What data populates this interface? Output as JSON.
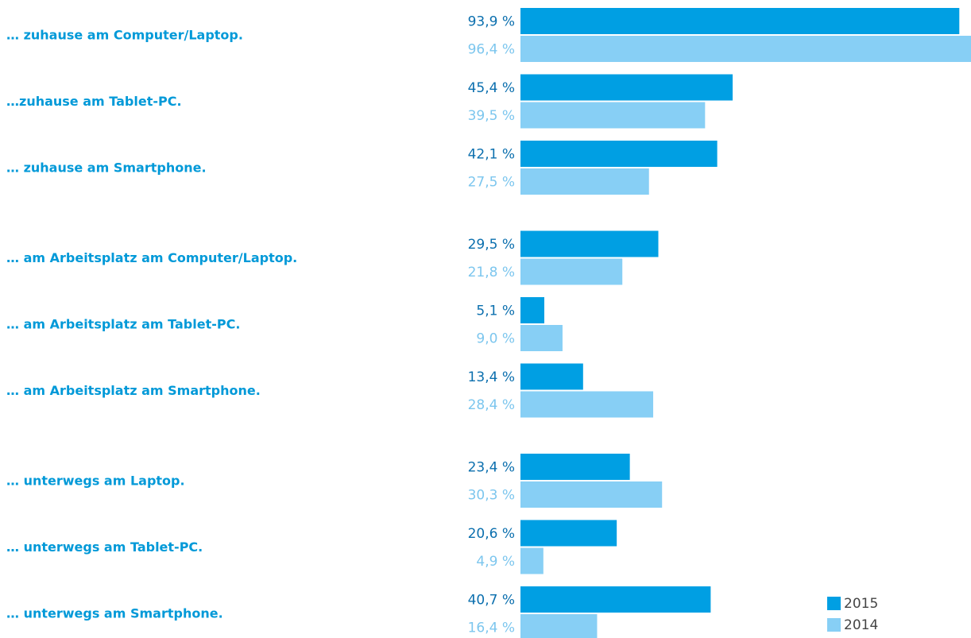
{
  "chart_data": {
    "type": "barh",
    "categories": [
      "… zuhause am Computer/Laptop.",
      "…zuhause am Tablet-PC.",
      "… zuhause am Smartphone.",
      "… am Arbeitsplatz am Computer/Laptop.",
      "… am Arbeitsplatz am Tablet-PC.",
      "… am Arbeitsplatz am Smartphone.",
      "… unterwegs am Laptop.",
      "… unterwegs am Tablet-PC.",
      "… unterwegs am Smartphone."
    ],
    "series": [
      {
        "name": "2015",
        "color": "#009fe3",
        "label_color": "#0b6fae",
        "values": [
          93.9,
          45.4,
          42.1,
          29.5,
          5.1,
          13.4,
          23.4,
          20.6,
          40.7
        ],
        "value_labels": [
          "93,9 %",
          "45,4 %",
          "42,1 %",
          "29,5 %",
          "5,1 %",
          "13,4 %",
          "23,4 %",
          "20,6 %",
          "40,7 %"
        ]
      },
      {
        "name": "2014",
        "color": "#87cff5",
        "label_color": "#7cc6ee",
        "values": [
          96.4,
          39.5,
          27.5,
          21.8,
          9.0,
          28.4,
          30.3,
          4.9,
          16.4
        ],
        "value_labels": [
          "96,4 %",
          "39,5 %",
          "27,5 %",
          "21,8 %",
          "9,0 %",
          "28,4 %",
          "30,3 %",
          "4,9 %",
          "16,4 %"
        ]
      }
    ],
    "legend": "bottom-right"
  }
}
